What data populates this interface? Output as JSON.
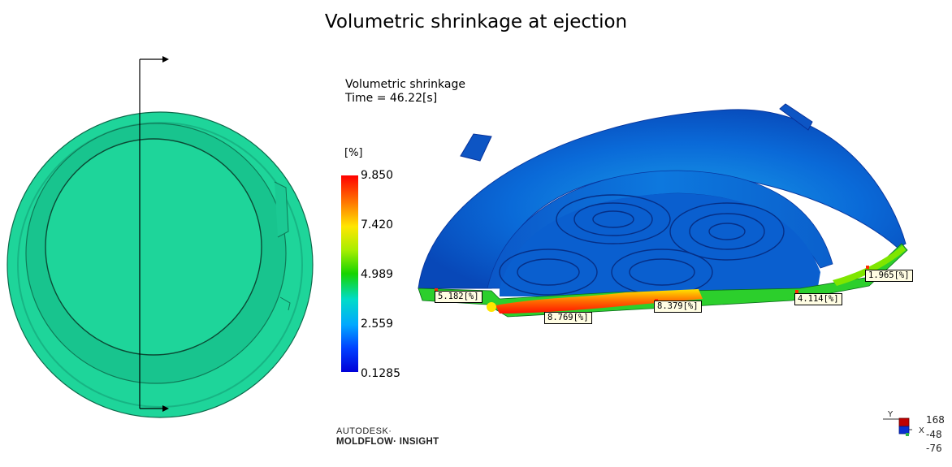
{
  "title": "Volumetric shrinkage at ejection",
  "result_name": "Volumetric shrinkage",
  "time_label": "Time = 46.22[s]",
  "legend": {
    "unit": "[%]",
    "ticks": [
      "9.850",
      "7.420",
      "4.989",
      "2.559",
      "0.1285"
    ]
  },
  "probes": [
    "5.182[%]",
    "8.769[%]",
    "8.379[%]",
    "4.114[%]",
    "1.965[%]"
  ],
  "brand": {
    "line1": "AUTODESK·",
    "line2": "MOLDFLOW· INSIGHT"
  },
  "axes": {
    "y_label": "Y",
    "x_label": "X",
    "values": [
      "168",
      "-48",
      "-76"
    ]
  },
  "colors": {
    "part_green": "#1ed59a",
    "shrink_blue": "#0a6ad8",
    "high_red": "#ff2000"
  }
}
